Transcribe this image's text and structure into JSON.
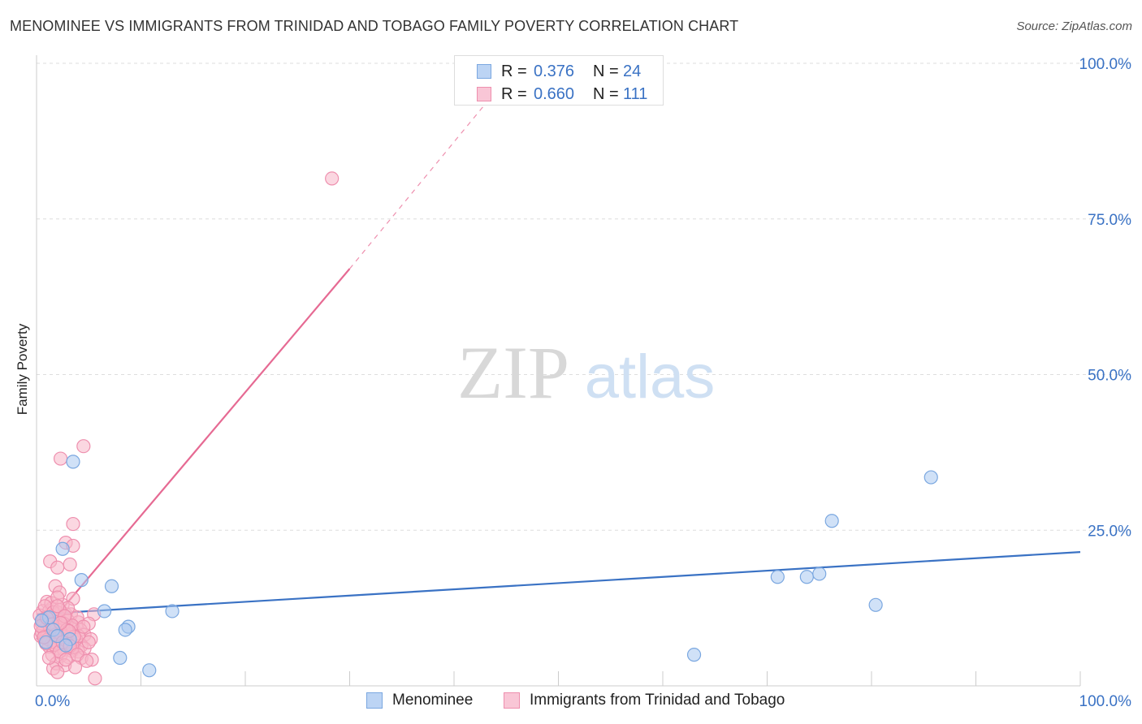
{
  "title": "MENOMINEE VS IMMIGRANTS FROM TRINIDAD AND TOBAGO FAMILY POVERTY CORRELATION CHART",
  "source": "Source: ZipAtlas.com",
  "watermark": {
    "zip": "ZIP",
    "atlas": "atlas"
  },
  "colors": {
    "blue_fill": "#a9c8f0",
    "blue_stroke": "#7aa7e0",
    "blue_line": "#3a72c4",
    "pink_fill": "#f7b6c9",
    "pink_stroke": "#ee8fae",
    "pink_line": "#e66a93",
    "tick_text": "#3a72c4",
    "grid": "#dddddd"
  },
  "legend": {
    "rows": [
      {
        "r_label": "R =",
        "r_value": "0.376",
        "n_label": "N =",
        "n_value": "24"
      },
      {
        "r_label": "R =",
        "r_value": "0.660",
        "n_label": "N =",
        "n_value": "111"
      }
    ]
  },
  "bottom_legend": [
    {
      "label": "Menominee"
    },
    {
      "label": "Immigrants from Trinidad and Tobago"
    }
  ],
  "chart_data": {
    "type": "scatter",
    "title": "MENOMINEE VS IMMIGRANTS FROM TRINIDAD AND TOBAGO FAMILY POVERTY CORRELATION CHART",
    "xlabel": "",
    "ylabel": "Family Poverty",
    "xlim": [
      0,
      100
    ],
    "ylim": [
      0,
      100
    ],
    "x_tick_labels": [
      "0.0%",
      "100.0%"
    ],
    "y_ticks": [
      25,
      50,
      75,
      100
    ],
    "y_tick_labels": [
      "25.0%",
      "50.0%",
      "75.0%",
      "100.0%"
    ],
    "grid": true,
    "series": [
      {
        "name": "Menominee",
        "r": 0.376,
        "n": 24,
        "points": [
          [
            3.5,
            36.0
          ],
          [
            2.5,
            22.0
          ],
          [
            4.3,
            17.0
          ],
          [
            7.2,
            16.0
          ],
          [
            6.5,
            12.0
          ],
          [
            13.0,
            12.0
          ],
          [
            8.8,
            9.5
          ],
          [
            8.5,
            9.0
          ],
          [
            8.0,
            4.5
          ],
          [
            10.8,
            2.5
          ],
          [
            3.2,
            7.5
          ],
          [
            1.6,
            9.0
          ],
          [
            0.9,
            7.0
          ],
          [
            1.2,
            11.0
          ],
          [
            2.8,
            6.5
          ],
          [
            63.0,
            5.0
          ],
          [
            71.0,
            17.5
          ],
          [
            73.8,
            17.5
          ],
          [
            75.0,
            18.0
          ],
          [
            76.2,
            26.5
          ],
          [
            80.4,
            13.0
          ],
          [
            85.7,
            33.5
          ],
          [
            0.5,
            10.5
          ],
          [
            2.0,
            8.0
          ]
        ],
        "trend": {
          "x": [
            0,
            100
          ],
          "y": [
            11.5,
            21.5
          ],
          "dashed_extension": false
        }
      },
      {
        "name": "Immigrants from Trinidad and Tobago",
        "r": 0.66,
        "n": 111,
        "points": [
          [
            28.3,
            81.5
          ],
          [
            4.5,
            38.5
          ],
          [
            2.3,
            36.5
          ],
          [
            3.5,
            26.0
          ],
          [
            2.8,
            23.0
          ],
          [
            3.5,
            22.5
          ],
          [
            1.3,
            20.0
          ],
          [
            3.2,
            19.5
          ],
          [
            2.0,
            19.0
          ],
          [
            1.8,
            16.0
          ],
          [
            2.2,
            15.0
          ],
          [
            3.5,
            14.0
          ],
          [
            1.0,
            13.5
          ],
          [
            2.5,
            13.0
          ],
          [
            1.5,
            12.5
          ],
          [
            0.6,
            12.0
          ],
          [
            1.2,
            12.0
          ],
          [
            2.0,
            11.8
          ],
          [
            2.8,
            11.5
          ],
          [
            3.3,
            11.5
          ],
          [
            5.5,
            11.5
          ],
          [
            0.9,
            11.0
          ],
          [
            1.6,
            10.8
          ],
          [
            2.2,
            10.5
          ],
          [
            3.0,
            10.5
          ],
          [
            4.0,
            10.2
          ],
          [
            5.0,
            10.0
          ],
          [
            0.5,
            10.0
          ],
          [
            1.1,
            9.8
          ],
          [
            1.8,
            9.5
          ],
          [
            2.5,
            9.5
          ],
          [
            3.5,
            9.3
          ],
          [
            4.2,
            9.0
          ],
          [
            0.7,
            9.0
          ],
          [
            1.4,
            8.8
          ],
          [
            2.0,
            8.6
          ],
          [
            2.7,
            8.5
          ],
          [
            3.3,
            8.3
          ],
          [
            4.6,
            8.2
          ],
          [
            0.4,
            8.0
          ],
          [
            1.0,
            8.0
          ],
          [
            1.7,
            7.8
          ],
          [
            2.3,
            7.6
          ],
          [
            3.0,
            7.5
          ],
          [
            3.8,
            7.4
          ],
          [
            5.2,
            7.5
          ],
          [
            0.8,
            7.2
          ],
          [
            1.5,
            7.0
          ],
          [
            2.1,
            6.9
          ],
          [
            2.9,
            6.8
          ],
          [
            3.6,
            6.6
          ],
          [
            4.3,
            6.5
          ],
          [
            1.2,
            6.3
          ],
          [
            1.9,
            6.0
          ],
          [
            2.6,
            5.8
          ],
          [
            3.4,
            5.6
          ],
          [
            4.0,
            5.5
          ],
          [
            1.5,
            5.0
          ],
          [
            2.3,
            4.8
          ],
          [
            3.1,
            4.6
          ],
          [
            4.3,
            4.5
          ],
          [
            5.3,
            4.2
          ],
          [
            1.9,
            3.6
          ],
          [
            2.7,
            3.3
          ],
          [
            3.7,
            3.0
          ],
          [
            1.6,
            2.8
          ],
          [
            2.0,
            2.2
          ],
          [
            5.6,
            1.2
          ],
          [
            0.3,
            11.3
          ],
          [
            0.6,
            10.6
          ],
          [
            1.3,
            10.2
          ],
          [
            1.9,
            9.1
          ],
          [
            2.4,
            8.1
          ],
          [
            2.9,
            7.1
          ],
          [
            3.5,
            6.2
          ],
          [
            0.5,
            8.6
          ],
          [
            1.1,
            7.5
          ],
          [
            1.7,
            6.6
          ],
          [
            2.2,
            5.5
          ],
          [
            2.8,
            4.2
          ],
          [
            3.9,
            11.0
          ],
          [
            4.6,
            6.0
          ],
          [
            3.0,
            12.5
          ],
          [
            1.4,
            13.3
          ],
          [
            2.0,
            14.2
          ],
          [
            0.8,
            12.8
          ],
          [
            1.3,
            9.3
          ],
          [
            2.6,
            10.0
          ],
          [
            3.4,
            9.7
          ],
          [
            4.0,
            8.0
          ],
          [
            0.9,
            6.8
          ],
          [
            1.6,
            11.8
          ],
          [
            2.2,
            12.2
          ],
          [
            2.9,
            9.0
          ],
          [
            3.6,
            7.9
          ],
          [
            4.5,
            9.5
          ],
          [
            5.0,
            7.0
          ],
          [
            0.4,
            9.6
          ],
          [
            1.0,
            10.9
          ],
          [
            1.8,
            8.2
          ],
          [
            2.5,
            7.0
          ],
          [
            3.2,
            6.4
          ],
          [
            3.9,
            5.0
          ],
          [
            4.8,
            4.0
          ],
          [
            1.2,
            4.5
          ],
          [
            2.0,
            12.8
          ],
          [
            2.7,
            11.2
          ],
          [
            3.1,
            8.8
          ],
          [
            0.7,
            7.8
          ],
          [
            1.5,
            9.9
          ],
          [
            2.3,
            10.1
          ]
        ],
        "trend": {
          "x": [
            0,
            30.0
          ],
          "y": [
            7.5,
            67.0
          ],
          "dashed_extension": true,
          "dash_to": {
            "x": [
              30.0,
              43.5
            ],
            "y": [
              67.0,
              94.5
            ]
          }
        }
      }
    ]
  }
}
